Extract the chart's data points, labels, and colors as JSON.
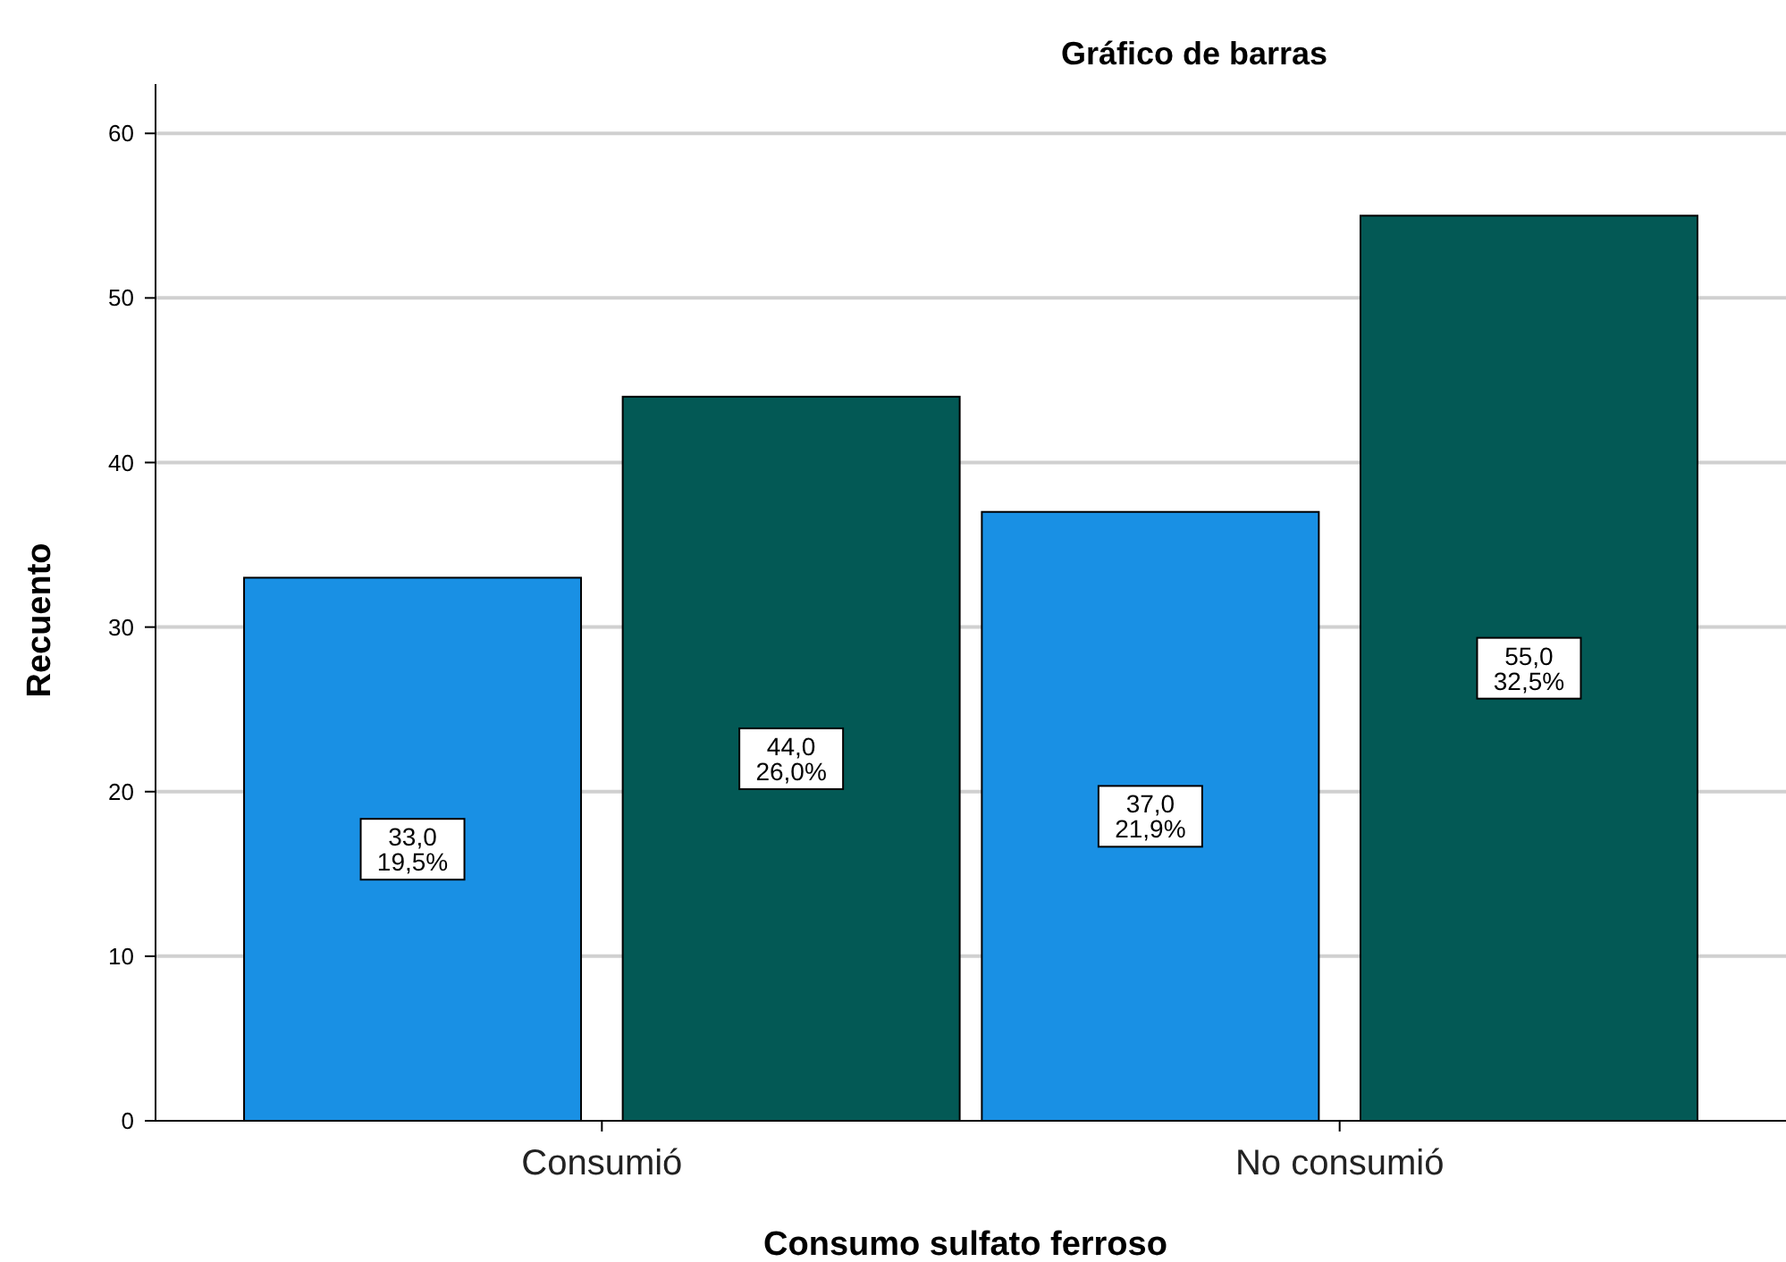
{
  "chart_data": {
    "type": "bar",
    "title": "Gráfico de barras",
    "xlabel": "Consumo  sulfato ferroso",
    "ylabel": "Recuento",
    "categories": [
      "Consumió",
      "No consumió"
    ],
    "series": [
      {
        "color": "#1990e4",
        "values": [
          33,
          37
        ],
        "value_labels": [
          "33,0\n19,5%",
          "37,0\n21,9%"
        ]
      },
      {
        "color": "#035955",
        "values": [
          44,
          55
        ],
        "value_labels": [
          "44,0\n26,0%",
          "55,0\n32,5%"
        ]
      }
    ],
    "ylim": [
      0,
      63
    ],
    "yticks": [
      0,
      10,
      20,
      30,
      40,
      50,
      60
    ],
    "grid": "y"
  }
}
